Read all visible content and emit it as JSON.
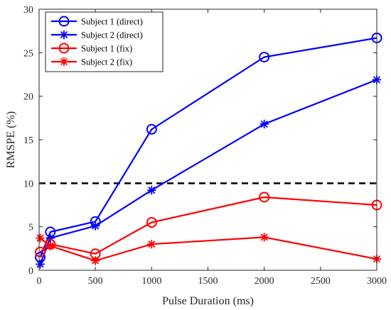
{
  "chart_data": {
    "type": "line",
    "title": "",
    "xlabel": "Pulse Duration (ms)",
    "ylabel": "RMSPE (%)",
    "xlim": [
      0,
      3000
    ],
    "ylim": [
      0,
      30
    ],
    "xticks": [
      0,
      500,
      1000,
      1500,
      2000,
      2500,
      3000
    ],
    "yticks": [
      0,
      5,
      10,
      15,
      20,
      25,
      30
    ],
    "grid": false,
    "legend_position": "top-left",
    "reference_line": {
      "y": 10,
      "style": "dashed",
      "color": "#000000"
    },
    "series": [
      {
        "name": "Subject 1 (direct)",
        "color": "#0000ff",
        "marker": "circle",
        "x": [
          10,
          100,
          500,
          1000,
          2000,
          3000
        ],
        "y": [
          1.5,
          4.4,
          5.6,
          16.2,
          24.5,
          26.7
        ]
      },
      {
        "name": "Subject 2 (direct)",
        "color": "#0000ff",
        "marker": "asterisk",
        "x": [
          10,
          100,
          500,
          1000,
          2000,
          3000
        ],
        "y": [
          0.7,
          3.7,
          5.1,
          9.2,
          16.8,
          21.9
        ]
      },
      {
        "name": "Subject 1 (fix)",
        "color": "#ff0000",
        "marker": "circle",
        "x": [
          10,
          100,
          500,
          1000,
          2000,
          3000
        ],
        "y": [
          2.1,
          3.0,
          1.9,
          5.5,
          8.4,
          7.5
        ]
      },
      {
        "name": "Subject 2 (fix)",
        "color": "#ff0000",
        "marker": "asterisk",
        "x": [
          10,
          100,
          500,
          1000,
          2000,
          3000
        ],
        "y": [
          3.7,
          2.8,
          1.1,
          3.0,
          3.8,
          1.3
        ]
      }
    ]
  }
}
